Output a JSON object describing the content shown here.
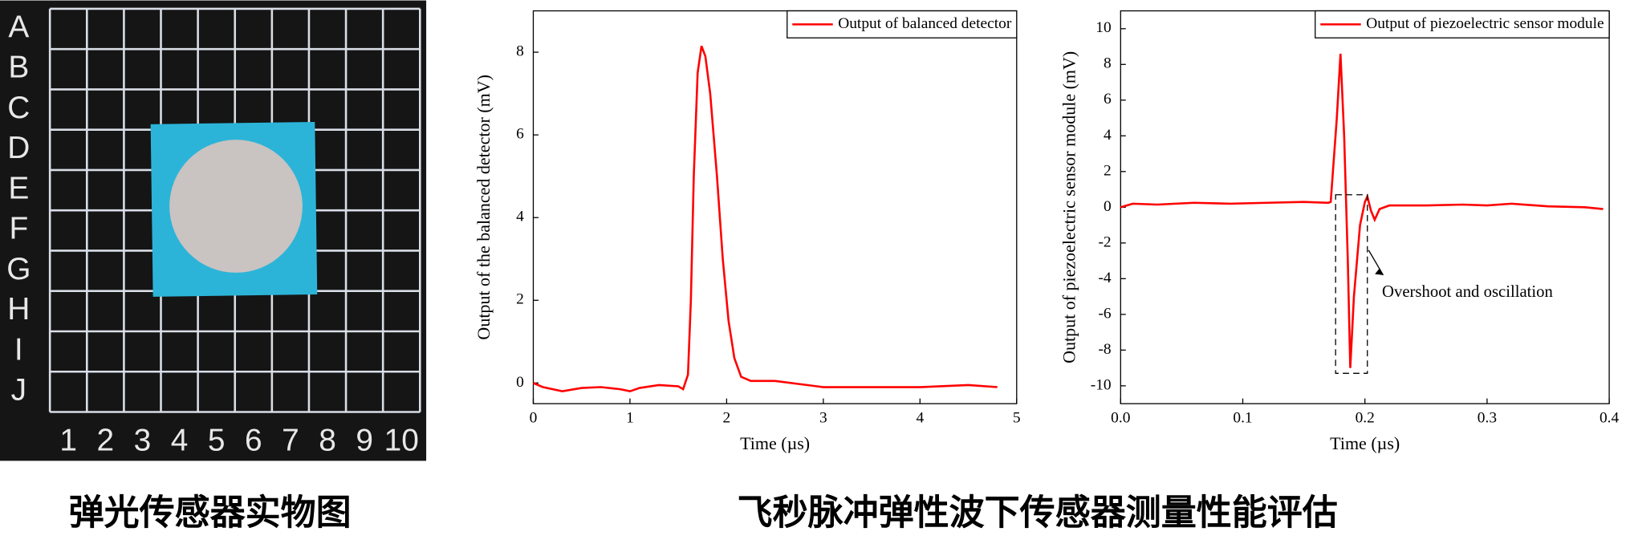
{
  "photo": {
    "row_labels": [
      "A",
      "B",
      "C",
      "D",
      "E",
      "F",
      "G",
      "H",
      "I",
      "J"
    ],
    "col_labels": [
      "1",
      "2",
      "3",
      "4",
      "5",
      "6",
      "7",
      "8",
      "9",
      "10"
    ],
    "caption": "弹光传感器实物图"
  },
  "caption": "飞秒脉冲弹性波下传感器测量性能评估",
  "chart_data": [
    {
      "type": "line",
      "x_label": "Time (µs)",
      "y_label": "Output of the balanced detector (mV)",
      "x": [
        0,
        0.1,
        0.3,
        0.5,
        0.7,
        0.9,
        1.0,
        1.1,
        1.3,
        1.5,
        1.55,
        1.6,
        1.63,
        1.66,
        1.7,
        1.74,
        1.78,
        1.83,
        1.9,
        1.96,
        2.02,
        2.08,
        2.15,
        2.25,
        2.5,
        3,
        3.5,
        4,
        4.5,
        4.8
      ],
      "series": [
        {
          "name": "Output of balanced detector",
          "color": "#ff0000",
          "values": [
            0,
            -0.1,
            -0.2,
            -0.12,
            -0.1,
            -0.15,
            -0.2,
            -0.12,
            -0.05,
            -0.08,
            -0.15,
            0.2,
            2,
            5,
            7.5,
            8.15,
            7.9,
            7,
            5,
            3,
            1.5,
            0.6,
            0.15,
            0.05,
            0.05,
            -0.1,
            -0.1,
            -0.1,
            -0.05,
            -0.1
          ]
        }
      ],
      "xlim": [
        0,
        5
      ],
      "xticks": [
        0,
        1,
        2,
        3,
        4,
        5
      ],
      "ylim": [
        -0.5,
        9
      ],
      "yticks": [
        0,
        2,
        4,
        6,
        8
      ],
      "legend": "top-right"
    },
    {
      "type": "line",
      "x_label": "Time (µs)",
      "y_label": "Output of piezoelectric sensor module (mV)",
      "annotation": "Overshoot and oscillation",
      "x": [
        0,
        0.01,
        0.03,
        0.06,
        0.09,
        0.12,
        0.15,
        0.17,
        0.172,
        0.177,
        0.18,
        0.183,
        0.186,
        0.188,
        0.191,
        0.196,
        0.2,
        0.202,
        0.205,
        0.208,
        0.212,
        0.22,
        0.25,
        0.28,
        0.3,
        0.32,
        0.35,
        0.38,
        0.395
      ],
      "series": [
        {
          "name": "Output of piezoelectric sensor module",
          "color": "#ff0000",
          "values": [
            0,
            0.2,
            0.15,
            0.25,
            0.2,
            0.25,
            0.3,
            0.25,
            0.3,
            5,
            8.6,
            4,
            -3,
            -9,
            -5,
            -1,
            0.3,
            0.6,
            -0.2,
            -0.7,
            -0.1,
            0.1,
            0.1,
            0.15,
            0.1,
            0.2,
            0.05,
            0,
            -0.1
          ]
        }
      ],
      "xlim": [
        0,
        0.4
      ],
      "xticks": [
        {
          "value": 0,
          "label": "0.0"
        },
        0.1,
        0.2,
        0.3,
        0.4
      ],
      "ylim": [
        -11,
        11
      ],
      "yticks": [
        -10,
        -8,
        -6,
        -4,
        -2,
        0,
        2,
        4,
        6,
        8,
        10
      ],
      "legend": "top-right"
    }
  ]
}
